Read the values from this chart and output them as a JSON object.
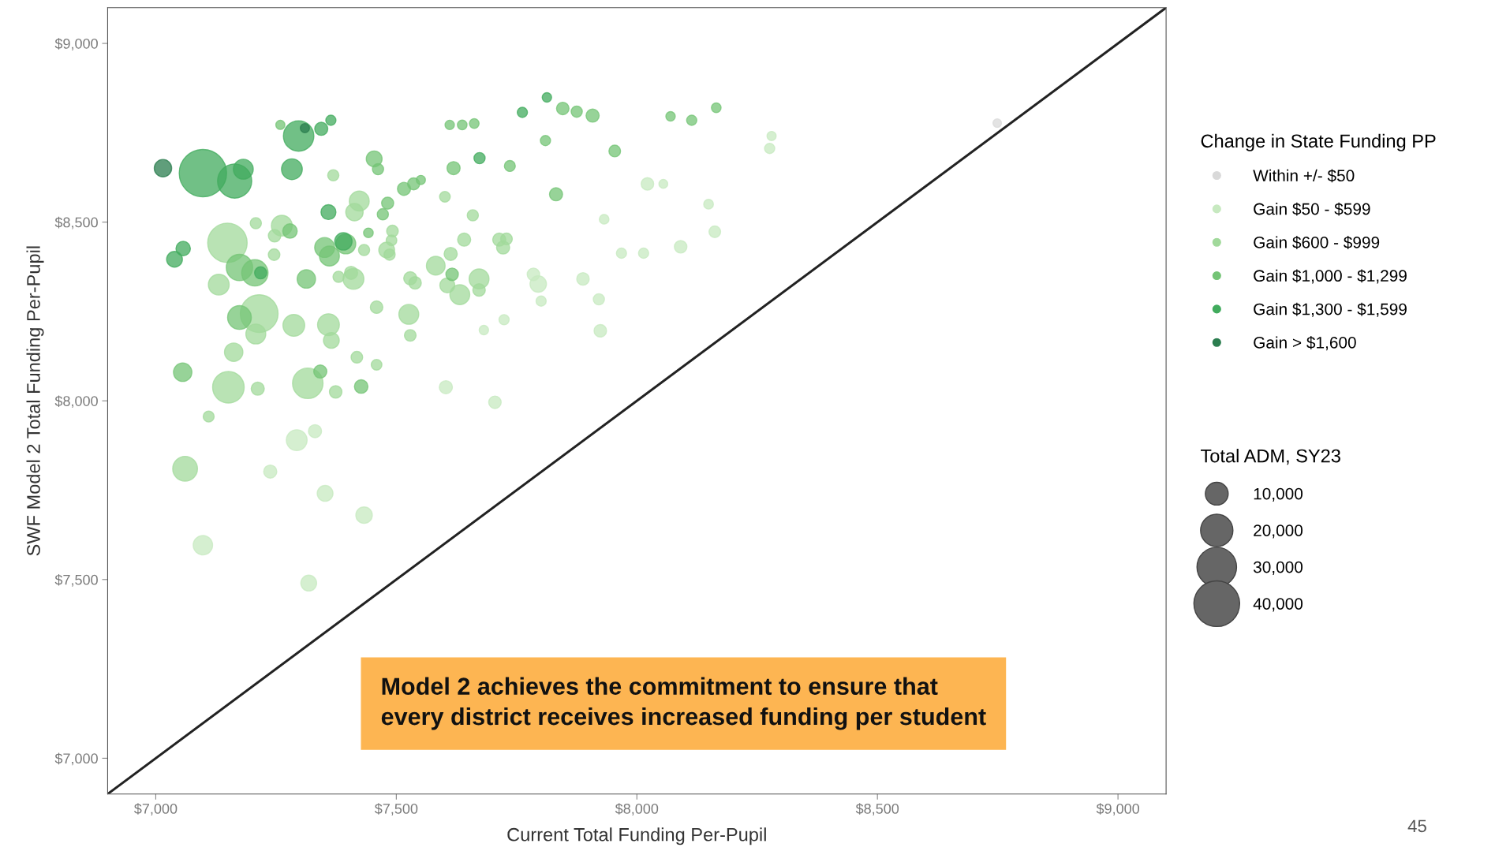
{
  "chart_data": {
    "type": "bubble",
    "xlabel": "Current Total Funding Per-Pupil",
    "ylabel": "SWF Model 2 Total Funding Per-Pupil",
    "legend_title": "Change in State Funding PP",
    "legend": "right",
    "grid": false,
    "xlim": [
      6900,
      9100
    ],
    "ylim": [
      6900,
      9100
    ],
    "xticks": [
      {
        "value": 7000,
        "label": "$7,000"
      },
      {
        "value": 7500,
        "label": "$7,500"
      },
      {
        "value": 8000,
        "label": "$8,000"
      },
      {
        "value": 8500,
        "label": "$8,500"
      },
      {
        "value": 9000,
        "label": "$9,000"
      }
    ],
    "yticks": [
      {
        "value": 7000,
        "label": "$7,000"
      },
      {
        "value": 7500,
        "label": "$7,500"
      },
      {
        "value": 8000,
        "label": "$8,000"
      },
      {
        "value": 8500,
        "label": "$8,500"
      },
      {
        "value": 9000,
        "label": "$9,000"
      }
    ],
    "size_legend": [
      {
        "value": 10000,
        "label": "10,000"
      },
      {
        "value": 20000,
        "label": "20,000"
      },
      {
        "value": 30000,
        "label": "30,000"
      },
      {
        "value": 40000,
        "label": "40,000"
      }
    ],
    "annotations": [
      "Model 2 achieves the commitment to ensure that\nevery district receives increased funding per student",
      "45",
      "Total ADM, SY23"
    ],
    "series": [
      {
        "type": "line",
        "color": "#222222",
        "x": [
          6900,
          9100
        ],
        "values": [
          6900,
          9100
        ]
      },
      {
        "name": "Within +/- $50",
        "color": "#d9d9d9",
        "x": [
          8749
        ],
        "values": [
          8777
        ],
        "sizes": [
          1400
        ]
      },
      {
        "name": "Gain $50 - $599",
        "color": "#c7e9c0",
        "x": [
          7682,
          7603,
          7293,
          7331,
          7238,
          7352,
          7433,
          7098,
          7318,
          8280,
          8276,
          8022,
          8055,
          8149,
          7932,
          8162,
          8091,
          7968,
          8014,
          7785,
          7795,
          7888,
          7801,
          7921,
          7724,
          7924,
          7705
        ],
        "values": [
          8198,
          8038,
          7890,
          7915,
          7802,
          7741,
          7680,
          7596,
          7490,
          8741,
          8706,
          8607,
          8607,
          8550,
          8508,
          8473,
          8431,
          8413,
          8413,
          8354,
          8327,
          8341,
          8279,
          8284,
          8227,
          8196,
          7996
        ],
        "sizes": [
          1700,
          3300,
          8300,
          3300,
          3300,
          4800,
          5200,
          7200,
          4800,
          1600,
          2000,
          3000,
          1500,
          1800,
          1800,
          2600,
          3000,
          2000,
          2000,
          3000,
          5200,
          3000,
          2000,
          2400,
          2000,
          3000,
          3000
        ]
      },
      {
        "name": "Gain $600 - $999",
        "color": "#a1d99b",
        "x": [
          7369,
          7423,
          7413,
          7601,
          7659,
          7208,
          7262,
          7247,
          7149,
          7246,
          7433,
          7492,
          7490,
          7480,
          7486,
          7641,
          7613,
          7582,
          7606,
          7632,
          7672,
          7672,
          7131,
          7380,
          7406,
          7411,
          7529,
          7539,
          7459,
          7526,
          7529,
          7215,
          7208,
          7287,
          7359,
          7365,
          7162,
          7418,
          7459,
          7151,
          7212,
          7316,
          7374,
          7110,
          7061,
          7714,
          7729,
          7722
        ],
        "values": [
          8631,
          8559,
          8528,
          8571,
          8519,
          8497,
          8490,
          8462,
          8442,
          8409,
          8422,
          8475,
          8449,
          8422,
          8409,
          8451,
          8411,
          8378,
          8323,
          8297,
          8341,
          8310,
          8325,
          8347,
          8358,
          8341,
          8343,
          8330,
          8262,
          8242,
          8183,
          8244,
          8187,
          8211,
          8213,
          8169,
          8136,
          8122,
          8101,
          8038,
          8034,
          8049,
          8025,
          7956,
          7810,
          8451,
          8453,
          8429
        ],
        "sizes": [
          2400,
          7600,
          5800,
          2200,
          2400,
          2400,
          8300,
          3000,
          29800,
          2600,
          2400,
          2600,
          2200,
          4800,
          2400,
          3300,
          3300,
          6700,
          4300,
          7600,
          7600,
          3000,
          8300,
          2400,
          3300,
          8300,
          3300,
          3000,
          3000,
          7600,
          2600,
          27300,
          7600,
          9100,
          9100,
          4800,
          6500,
          2600,
          2200,
          19100,
          3300,
          17800,
          3000,
          2300,
          11800,
          3300,
          2600,
          3300
        ]
      },
      {
        "name": "Gain $1,000 - $1,299",
        "color": "#74c476",
        "x": [
          7259,
          7611,
          7637,
          7662,
          7454,
          7462,
          7619,
          7516,
          7536,
          7551,
          7482,
          7472,
          7279,
          7351,
          7361,
          7395,
          7442,
          7616,
          7174,
          7206,
          7313,
          7174,
          7056,
          7342,
          7427,
          7846,
          7875,
          7908,
          8070,
          8114,
          8165,
          7810,
          7736,
          7954,
          7832
        ],
        "values": [
          8772,
          8772,
          8772,
          8776,
          8677,
          8648,
          8651,
          8593,
          8607,
          8618,
          8553,
          8522,
          8475,
          8429,
          8405,
          8439,
          8470,
          8354,
          8373,
          8358,
          8341,
          8233,
          8080,
          8082,
          8040,
          8818,
          8809,
          8798,
          8796,
          8785,
          8820,
          8728,
          8657,
          8699,
          8578
        ],
        "sizes": [
          1600,
          1700,
          1800,
          1800,
          4800,
          2400,
          3300,
          3300,
          2800,
          1600,
          2800,
          2400,
          4000,
          7600,
          7600,
          7600,
          1800,
          3000,
          13300,
          13300,
          6500,
          10800,
          6500,
          3300,
          3500,
          3000,
          2400,
          3300,
          1700,
          2000,
          1800,
          2000,
          2300,
          2600,
          3300
        ]
      },
      {
        "name": "Gain $1,300 - $1,599",
        "color": "#41ab5d",
        "x": [
          7297,
          7344,
          7364,
          7164,
          7182,
          7283,
          7673,
          7359,
          7057,
          7039,
          7390,
          7218,
          7813,
          7762,
          7098
        ],
        "values": [
          8741,
          8761,
          8785,
          8615,
          8648,
          8648,
          8679,
          8528,
          8426,
          8396,
          8446,
          8358,
          8849,
          8807,
          8637
        ],
        "sizes": [
          17800,
          3300,
          2000,
          22400,
          7600,
          8300,
          2400,
          4300,
          4000,
          4800,
          5800,
          2800,
          1700,
          2000,
          43000
        ]
      },
      {
        "name": "Gain > $1,600",
        "color": "#2b7d4f",
        "x": [
          7310,
          7015
        ],
        "values": [
          8763,
          8651
        ],
        "sizes": [
          1600,
          5800
        ]
      }
    ]
  }
}
